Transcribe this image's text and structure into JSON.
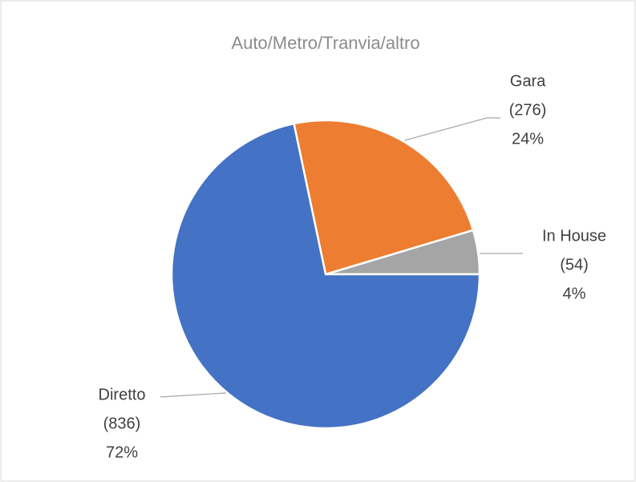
{
  "chart_data": {
    "type": "pie",
    "title": "Auto/Metro/Tranvia/altro",
    "categories": [
      "In House",
      "Gara",
      "Diretto"
    ],
    "values": [
      54,
      276,
      836
    ],
    "value_labels": [
      "(54)",
      "(276)",
      "(836)"
    ],
    "percentages": [
      4,
      24,
      72
    ],
    "percentage_labels": [
      "4%",
      "24%",
      "72%"
    ],
    "colors": [
      "#a5a5a5",
      "#ed7d31",
      "#4472c4"
    ]
  }
}
